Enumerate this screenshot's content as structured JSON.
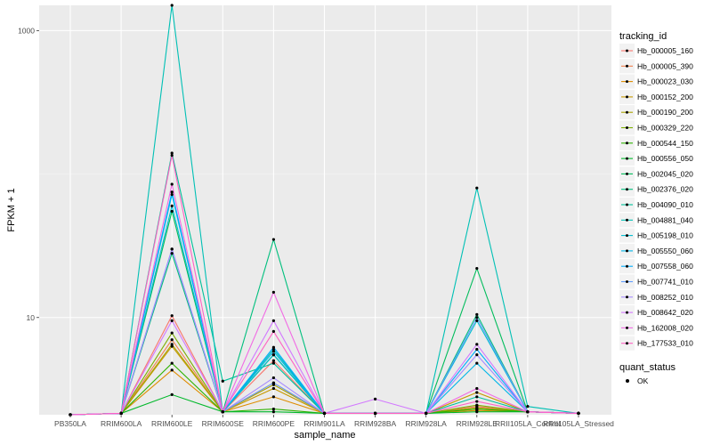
{
  "chart_data": {
    "type": "line",
    "title": "",
    "xlabel": "sample_name",
    "ylabel": "FPKM + 1",
    "y_scale": "log10",
    "ylim": [
      2.1,
      1500
    ],
    "grid": true,
    "legend_position": "right",
    "categories": [
      "PB350LA",
      "RRIM600LA",
      "RRIM600LE",
      "RRIM600SE",
      "RRIM600PE",
      "RRIM901LA",
      "RRIM928BA",
      "RRIM928LA",
      "RRIM928LE",
      "RRII105LA_Control",
      "RRII105LA_Stressed"
    ],
    "y_ticks": [
      10,
      1000
    ],
    "y_tick_labels": [
      "10",
      "1000"
    ],
    "series": [
      {
        "name": "Hb_000005_160",
        "color": "#F8766D",
        "values": [
          2.1,
          2.15,
          10.3,
          2.2,
          5.0,
          2.15,
          2.15,
          2.15,
          2.4,
          2.2,
          2.15
        ]
      },
      {
        "name": "Hb_000005_390",
        "color": "#F07F4B",
        "values": [
          2.1,
          2.15,
          7.0,
          2.2,
          3.5,
          2.15,
          2.15,
          2.15,
          2.3,
          2.2,
          2.15
        ]
      },
      {
        "name": "Hb_000023_030",
        "color": "#DE8C00",
        "values": [
          2.1,
          2.15,
          4.3,
          2.2,
          2.8,
          2.15,
          2.15,
          2.15,
          2.25,
          2.2,
          2.15
        ]
      },
      {
        "name": "Hb_000152_200",
        "color": "#C79800",
        "values": [
          2.1,
          2.15,
          6.3,
          2.2,
          3.2,
          2.15,
          2.15,
          2.15,
          3.0,
          2.2,
          2.15
        ]
      },
      {
        "name": "Hb_000190_200",
        "color": "#A9A300",
        "values": [
          2.1,
          2.15,
          6.5,
          2.2,
          3.4,
          2.15,
          2.15,
          2.15,
          2.35,
          2.2,
          2.15
        ]
      },
      {
        "name": "Hb_000329_220",
        "color": "#7CAE00",
        "values": [
          2.1,
          2.15,
          7.8,
          2.2,
          5.5,
          2.15,
          2.15,
          2.15,
          2.45,
          2.2,
          2.15
        ]
      },
      {
        "name": "Hb_000544_150",
        "color": "#2EB200",
        "values": [
          2.1,
          2.15,
          4.8,
          2.2,
          2.3,
          2.15,
          2.15,
          2.15,
          2.3,
          2.2,
          2.15
        ]
      },
      {
        "name": "Hb_000556_050",
        "color": "#00B82A",
        "values": [
          2.1,
          2.15,
          2.9,
          2.2,
          2.2,
          2.15,
          2.15,
          2.15,
          2.2,
          2.2,
          2.15
        ]
      },
      {
        "name": "Hb_002045_020",
        "color": "#00BC5B",
        "values": [
          2.1,
          2.15,
          55.0,
          2.2,
          5.5,
          2.15,
          2.15,
          2.15,
          22.0,
          2.2,
          2.15
        ]
      },
      {
        "name": "Hb_002376_020",
        "color": "#00BF7D",
        "values": [
          2.1,
          2.15,
          28.0,
          2.2,
          35.0,
          2.15,
          2.15,
          2.15,
          10.5,
          2.2,
          2.15
        ]
      },
      {
        "name": "Hb_004090_010",
        "color": "#00C19A",
        "values": [
          2.1,
          2.15,
          140.0,
          3.6,
          4.8,
          2.15,
          2.15,
          2.15,
          2.8,
          2.2,
          2.15
        ]
      },
      {
        "name": "Hb_004881_040",
        "color": "#00C0B5",
        "values": [
          2.1,
          2.15,
          1500.0,
          2.2,
          6.0,
          2.15,
          2.15,
          2.15,
          80.0,
          2.4,
          2.15
        ]
      },
      {
        "name": "Hb_005198_010",
        "color": "#00BDD0",
        "values": [
          2.1,
          2.15,
          60.0,
          2.2,
          5.5,
          2.15,
          2.15,
          2.15,
          9.5,
          2.2,
          2.15
        ]
      },
      {
        "name": "Hb_005550_060",
        "color": "#00B6E8",
        "values": [
          2.1,
          2.15,
          72.0,
          2.2,
          5.8,
          2.15,
          2.15,
          2.15,
          4.8,
          2.2,
          2.15
        ]
      },
      {
        "name": "Hb_007558_060",
        "color": "#00ACFC",
        "values": [
          2.1,
          2.15,
          75.0,
          2.2,
          6.2,
          2.15,
          2.15,
          2.15,
          6.0,
          2.2,
          2.15
        ]
      },
      {
        "name": "Hb_007741_010",
        "color": "#619CFF",
        "values": [
          2.1,
          2.15,
          30.0,
          2.2,
          3.5,
          2.15,
          2.15,
          2.15,
          10.0,
          2.2,
          2.15
        ]
      },
      {
        "name": "Hb_008252_010",
        "color": "#A68AFF",
        "values": [
          2.1,
          2.15,
          30.0,
          2.2,
          3.8,
          2.15,
          2.15,
          2.15,
          5.5,
          2.2,
          2.15
        ]
      },
      {
        "name": "Hb_008642_020",
        "color": "#D277FF",
        "values": [
          2.1,
          2.15,
          9.5,
          2.2,
          9.5,
          2.15,
          2.7,
          2.15,
          6.5,
          2.2,
          2.15
        ]
      },
      {
        "name": "Hb_162008_020",
        "color": "#F16AE4",
        "values": [
          2.1,
          2.15,
          85.0,
          2.2,
          15.0,
          2.15,
          2.15,
          2.15,
          3.2,
          2.2,
          2.15
        ]
      },
      {
        "name": "Hb_177533_010",
        "color": "#FF61C3",
        "values": [
          2.1,
          2.15,
          135.0,
          2.2,
          8.0,
          2.15,
          2.15,
          2.15,
          2.6,
          2.2,
          2.15
        ]
      }
    ]
  },
  "legend": {
    "title": "tracking_id",
    "shape_title": "quant_status",
    "shape_items": [
      "OK"
    ]
  }
}
